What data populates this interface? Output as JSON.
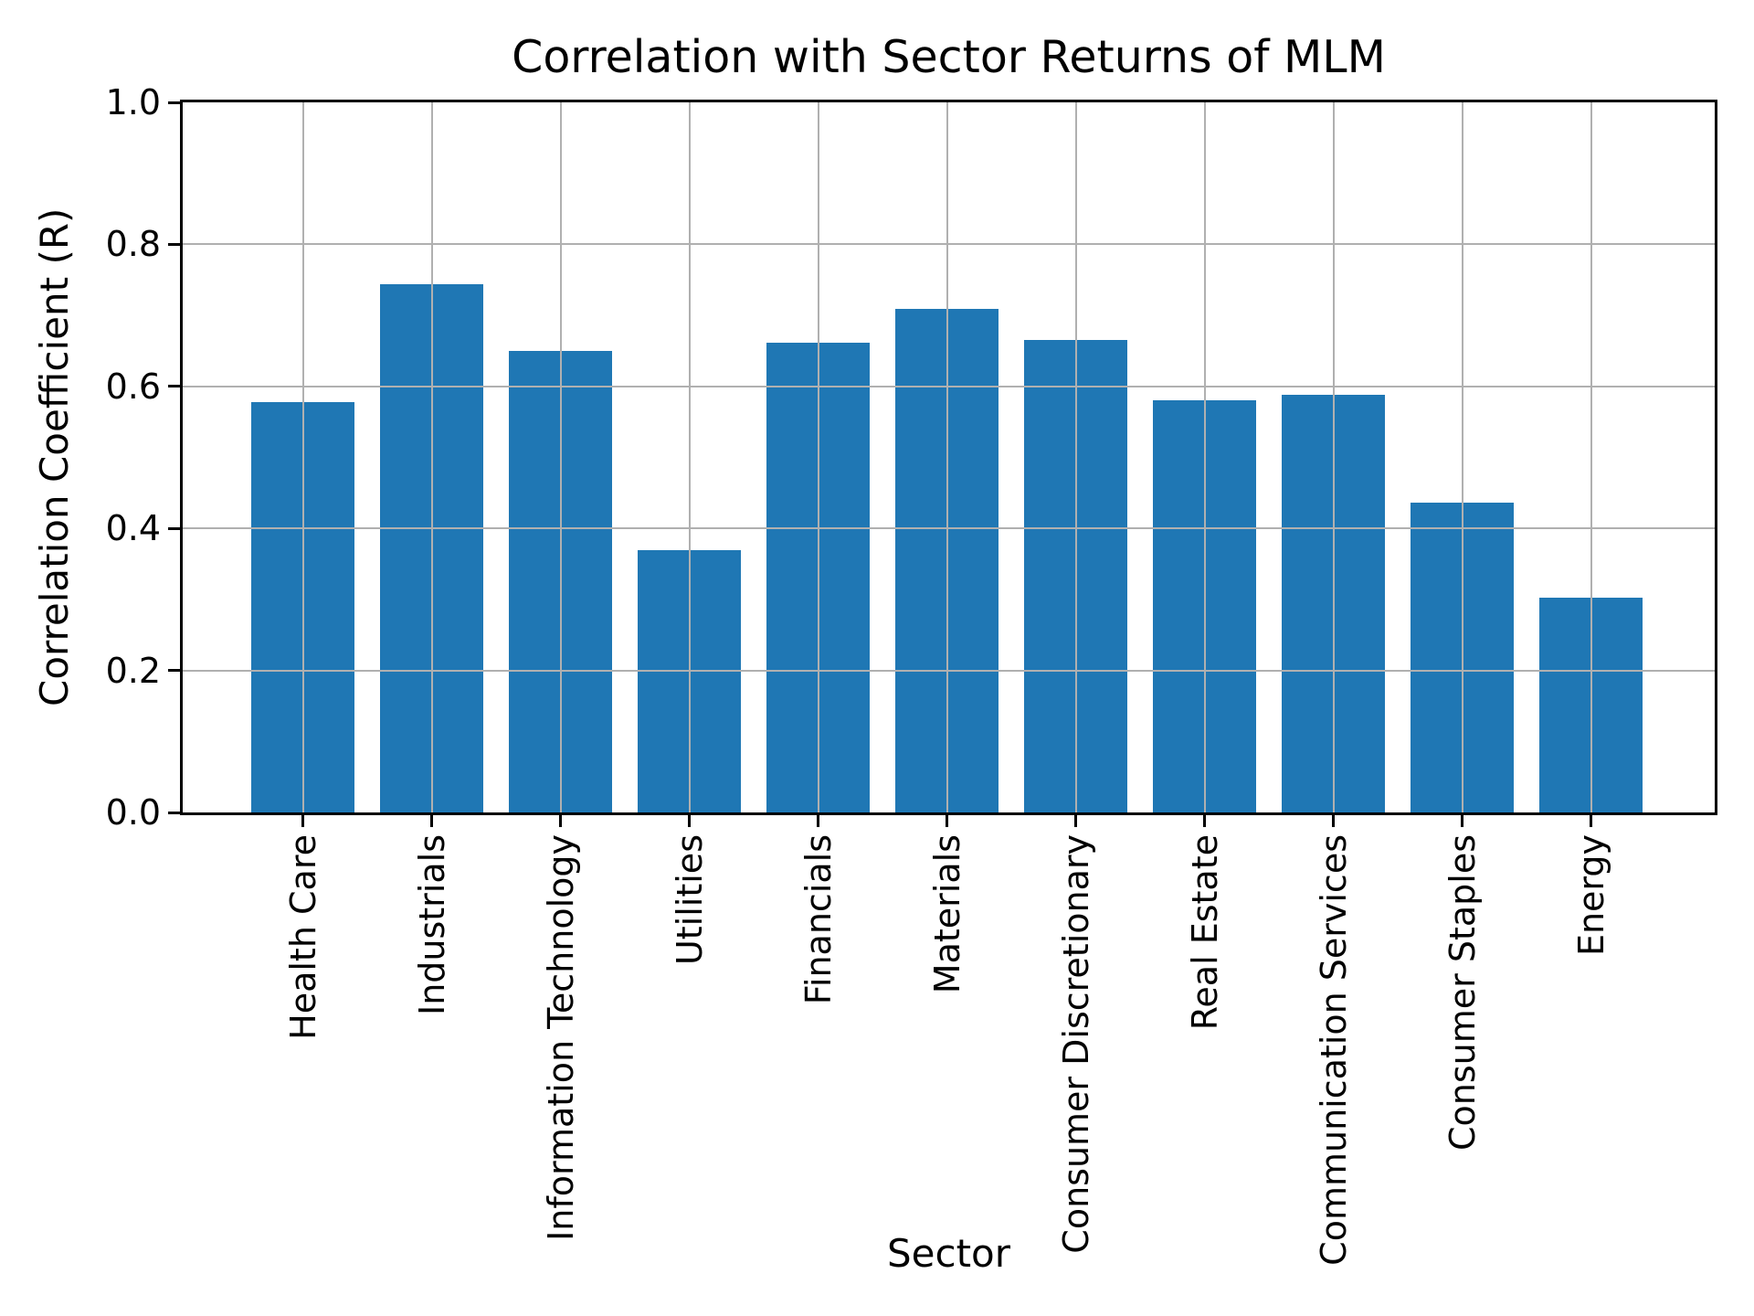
{
  "chart_data": {
    "type": "bar",
    "title": "Correlation with Sector Returns of MLM",
    "xlabel": "Sector",
    "ylabel": "Correlation Coefficient (R)",
    "categories": [
      "Health Care",
      "Industrials",
      "Information Technology",
      "Utilities",
      "Financials",
      "Materials",
      "Consumer Discretionary",
      "Real Estate",
      "Communication Services",
      "Consumer Staples",
      "Energy"
    ],
    "values": [
      0.578,
      0.744,
      0.65,
      0.37,
      0.661,
      0.709,
      0.665,
      0.58,
      0.588,
      0.436,
      0.302
    ],
    "ylim": [
      0.0,
      1.0
    ],
    "yticks": [
      "0.0",
      "0.2",
      "0.4",
      "0.6",
      "0.8",
      "1.0"
    ],
    "grid": true,
    "legend": false,
    "bar_color": "#1f77b4",
    "grid_color": "#b0b0b0"
  }
}
